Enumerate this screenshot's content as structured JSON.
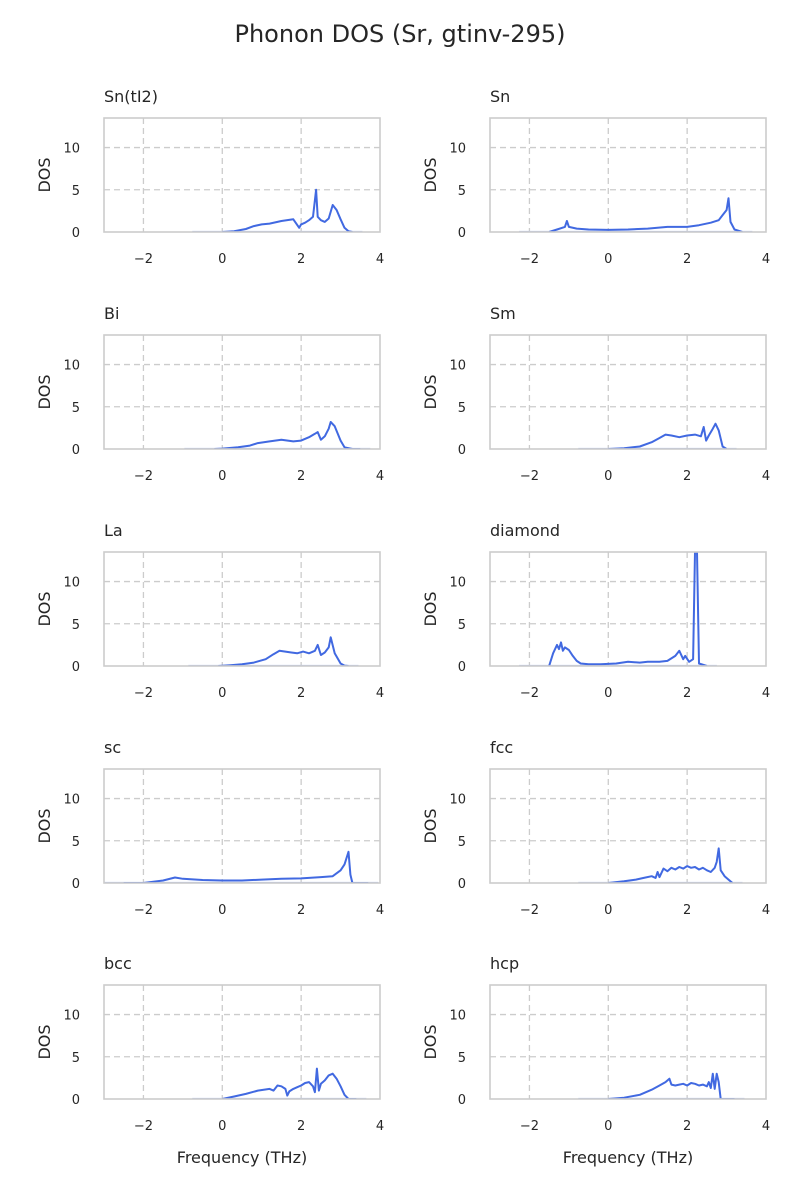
{
  "title": "Phonon DOS (Sr, gtinv-295)",
  "chart_data": {
    "type": "line",
    "layout": "5x2 grid of subplots",
    "xlabel": "Frequency (THz)",
    "ylabel": "DOS",
    "xlim": [
      -3,
      4
    ],
    "ylim": [
      0,
      13.5
    ],
    "xticks": [
      -2,
      0,
      2,
      4
    ],
    "yticks": [
      0,
      5,
      10
    ],
    "grid": "dashed",
    "line_color": "#4169e1",
    "subplots": [
      {
        "title": "Sn(tI2)",
        "x": [
          0.0,
          0.3,
          0.6,
          0.8,
          1.0,
          1.2,
          1.5,
          1.8,
          1.95,
          2.0,
          2.1,
          2.2,
          2.3,
          2.38,
          2.42,
          2.5,
          2.6,
          2.7,
          2.8,
          2.9,
          3.0,
          3.1,
          3.2,
          3.3
        ],
        "y": [
          0.0,
          0.1,
          0.35,
          0.7,
          0.9,
          1.0,
          1.3,
          1.5,
          0.5,
          0.9,
          1.1,
          1.4,
          1.8,
          5.0,
          1.8,
          1.4,
          1.2,
          1.6,
          3.2,
          2.6,
          1.5,
          0.5,
          0.1,
          0.0
        ]
      },
      {
        "title": "Sn",
        "x": [
          -1.5,
          -1.3,
          -1.1,
          -1.05,
          -1.0,
          -0.8,
          -0.5,
          0.0,
          0.5,
          1.0,
          1.5,
          2.0,
          2.3,
          2.6,
          2.8,
          2.9,
          3.0,
          3.05,
          3.1,
          3.2,
          3.4
        ],
        "y": [
          0.0,
          0.3,
          0.6,
          1.3,
          0.6,
          0.4,
          0.3,
          0.25,
          0.3,
          0.4,
          0.6,
          0.6,
          0.8,
          1.1,
          1.4,
          2.0,
          2.6,
          4.0,
          1.2,
          0.3,
          0.0
        ]
      },
      {
        "title": "Bi",
        "x": [
          -0.2,
          0.0,
          0.4,
          0.7,
          0.9,
          1.2,
          1.5,
          1.8,
          2.0,
          2.2,
          2.35,
          2.42,
          2.5,
          2.6,
          2.7,
          2.75,
          2.85,
          3.0,
          3.1,
          3.3,
          3.5
        ],
        "y": [
          0.0,
          0.05,
          0.2,
          0.4,
          0.7,
          0.9,
          1.1,
          0.9,
          1.0,
          1.4,
          1.8,
          2.0,
          1.1,
          1.5,
          2.4,
          3.2,
          2.7,
          1.0,
          0.2,
          0.0,
          0.0
        ]
      },
      {
        "title": "Sm",
        "x": [
          0.0,
          0.4,
          0.8,
          1.1,
          1.3,
          1.45,
          1.6,
          1.8,
          2.0,
          2.2,
          2.35,
          2.42,
          2.48,
          2.55,
          2.65,
          2.72,
          2.8,
          2.9,
          3.0
        ],
        "y": [
          0.0,
          0.1,
          0.3,
          0.8,
          1.3,
          1.7,
          1.6,
          1.4,
          1.6,
          1.7,
          1.5,
          2.6,
          1.0,
          1.6,
          2.4,
          3.0,
          2.2,
          0.3,
          0.0
        ]
      },
      {
        "title": "La",
        "x": [
          -0.1,
          0.2,
          0.5,
          0.8,
          1.1,
          1.3,
          1.45,
          1.6,
          1.75,
          1.9,
          2.05,
          2.2,
          2.35,
          2.42,
          2.5,
          2.6,
          2.7,
          2.75,
          2.85,
          3.0,
          3.1,
          3.2
        ],
        "y": [
          0.0,
          0.1,
          0.2,
          0.4,
          0.8,
          1.4,
          1.8,
          1.7,
          1.6,
          1.5,
          1.7,
          1.5,
          1.8,
          2.5,
          1.3,
          1.6,
          2.2,
          3.4,
          1.5,
          0.3,
          0.05,
          0.0
        ]
      },
      {
        "title": "diamond",
        "x": [
          -1.5,
          -1.5,
          -1.4,
          -1.3,
          -1.25,
          -1.2,
          -1.15,
          -1.1,
          -1.0,
          -0.9,
          -0.8,
          -0.7,
          -0.5,
          -0.2,
          0.2,
          0.5,
          0.8,
          1.0,
          1.3,
          1.5,
          1.7,
          1.8,
          1.9,
          1.95,
          2.05,
          2.15,
          2.2,
          2.25,
          2.3,
          2.5
        ],
        "y": [
          0.0,
          0.0,
          1.5,
          2.5,
          2.0,
          2.8,
          1.8,
          2.2,
          1.9,
          1.2,
          0.6,
          0.3,
          0.2,
          0.2,
          0.3,
          0.5,
          0.4,
          0.5,
          0.5,
          0.6,
          1.2,
          1.8,
          0.8,
          1.2,
          0.5,
          0.8,
          13.5,
          13.5,
          0.3,
          0.0
        ]
      },
      {
        "title": "sc",
        "x": [
          -2.5,
          -2.0,
          -1.5,
          -1.2,
          -1.0,
          -0.5,
          0.0,
          0.5,
          1.0,
          1.5,
          2.0,
          2.5,
          2.8,
          3.0,
          3.1,
          3.2,
          3.25,
          3.3,
          3.5,
          3.7
        ],
        "y": [
          0.0,
          0.0,
          0.3,
          0.65,
          0.5,
          0.35,
          0.3,
          0.3,
          0.4,
          0.5,
          0.55,
          0.7,
          0.8,
          1.5,
          2.2,
          3.7,
          1.0,
          0.0,
          0.0,
          0.0
        ]
      },
      {
        "title": "fcc",
        "x": [
          0.0,
          0.4,
          0.7,
          0.9,
          1.1,
          1.2,
          1.25,
          1.3,
          1.4,
          1.5,
          1.6,
          1.7,
          1.8,
          1.9,
          2.0,
          2.1,
          2.2,
          2.3,
          2.4,
          2.5,
          2.6,
          2.7,
          2.75,
          2.8,
          2.85,
          2.95,
          3.05,
          3.15
        ],
        "y": [
          0.0,
          0.2,
          0.4,
          0.6,
          0.8,
          0.6,
          1.3,
          0.7,
          1.7,
          1.4,
          1.8,
          1.6,
          1.9,
          1.7,
          2.0,
          1.8,
          1.9,
          1.6,
          1.8,
          1.5,
          1.3,
          1.8,
          2.5,
          4.1,
          1.5,
          0.8,
          0.4,
          0.0
        ]
      },
      {
        "title": "bcc",
        "x": [
          0.0,
          0.3,
          0.6,
          0.9,
          1.2,
          1.3,
          1.4,
          1.5,
          1.6,
          1.65,
          1.7,
          1.8,
          1.9,
          2.0,
          2.1,
          2.2,
          2.3,
          2.35,
          2.4,
          2.45,
          2.5,
          2.6,
          2.7,
          2.8,
          2.9,
          3.0,
          3.1,
          3.2,
          3.4
        ],
        "y": [
          0.0,
          0.3,
          0.6,
          1.0,
          1.2,
          1.0,
          1.6,
          1.5,
          1.2,
          0.4,
          0.9,
          1.2,
          1.4,
          1.6,
          1.9,
          2.0,
          1.5,
          0.8,
          3.6,
          1.0,
          1.8,
          2.2,
          2.8,
          3.0,
          2.4,
          1.5,
          0.5,
          0.0,
          0.0
        ]
      },
      {
        "title": "hcp",
        "x": [
          0.0,
          0.4,
          0.8,
          1.1,
          1.3,
          1.45,
          1.55,
          1.6,
          1.7,
          1.8,
          1.9,
          2.0,
          2.1,
          2.2,
          2.3,
          2.4,
          2.5,
          2.55,
          2.6,
          2.65,
          2.7,
          2.75,
          2.8,
          2.85,
          3.0,
          3.2
        ],
        "y": [
          0.0,
          0.15,
          0.5,
          1.1,
          1.6,
          2.0,
          2.4,
          1.7,
          1.6,
          1.7,
          1.8,
          1.6,
          1.9,
          1.8,
          1.6,
          1.7,
          1.5,
          2.0,
          1.3,
          3.0,
          1.2,
          3.0,
          2.0,
          0.0,
          0.0,
          0.0
        ]
      }
    ]
  }
}
